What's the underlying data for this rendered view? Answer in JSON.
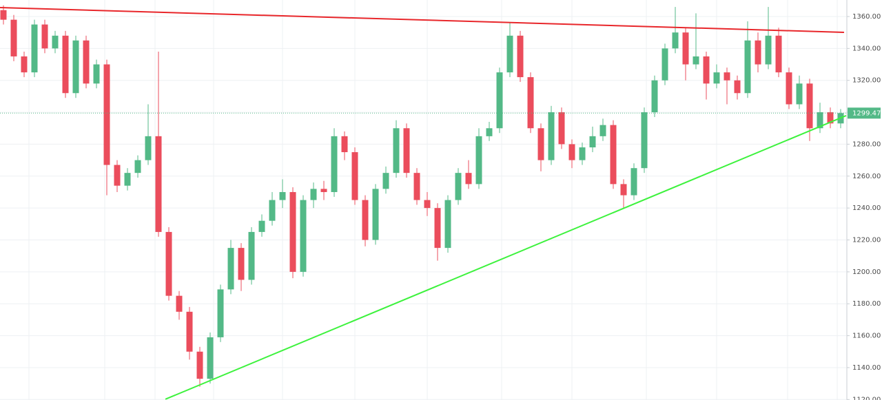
{
  "chart_data": {
    "type": "candlestick",
    "open": [
      1364,
      1358,
      1335,
      1325,
      1355,
      1340,
      1348,
      1312,
      1345,
      1318,
      1330,
      1267,
      1254,
      1262,
      1270,
      1285,
      1225,
      1185,
      1175,
      1150,
      1133,
      1159,
      1189,
      1215,
      1195,
      1225,
      1232,
      1245,
      1250,
      1200,
      1245,
      1252,
      1250,
      1285,
      1275,
      1245,
      1220,
      1252,
      1262,
      1290,
      1262,
      1245,
      1240,
      1215,
      1245,
      1262,
      1255,
      1285,
      1290,
      1325,
      1348,
      1322,
      1290,
      1270,
      1300,
      1280,
      1270,
      1278,
      1285,
      1292,
      1255,
      1248,
      1265,
      1300,
      1320,
      1340,
      1350,
      1330,
      1335,
      1318,
      1325,
      1320,
      1312,
      1345,
      1330,
      1348,
      1325,
      1305,
      1318,
      1290,
      1300,
      1293
    ],
    "high": [
      1367,
      1361,
      1338,
      1358,
      1358,
      1351,
      1351,
      1348,
      1348,
      1333,
      1333,
      1270,
      1265,
      1273,
      1305,
      1338,
      1228,
      1188,
      1178,
      1153,
      1162,
      1192,
      1220,
      1218,
      1228,
      1236,
      1250,
      1258,
      1253,
      1248,
      1256,
      1257,
      1290,
      1288,
      1278,
      1248,
      1255,
      1266,
      1295,
      1293,
      1265,
      1250,
      1243,
      1248,
      1265,
      1270,
      1290,
      1294,
      1328,
      1356,
      1351,
      1325,
      1293,
      1304,
      1303,
      1283,
      1281,
      1291,
      1296,
      1295,
      1258,
      1268,
      1303,
      1323,
      1343,
      1366,
      1353,
      1362,
      1338,
      1330,
      1328,
      1323,
      1357,
      1350,
      1366,
      1353,
      1328,
      1323,
      1321,
      1306,
      1303,
      1302
    ],
    "low": [
      1355,
      1332,
      1322,
      1322,
      1337,
      1337,
      1309,
      1309,
      1315,
      1315,
      1248,
      1250,
      1251,
      1259,
      1267,
      1222,
      1182,
      1170,
      1145,
      1128,
      1130,
      1156,
      1186,
      1188,
      1192,
      1222,
      1229,
      1240,
      1196,
      1197,
      1240,
      1245,
      1247,
      1270,
      1242,
      1216,
      1217,
      1249,
      1259,
      1259,
      1242,
      1235,
      1207,
      1212,
      1242,
      1252,
      1252,
      1282,
      1287,
      1322,
      1319,
      1287,
      1263,
      1267,
      1277,
      1265,
      1267,
      1275,
      1282,
      1252,
      1240,
      1245,
      1262,
      1297,
      1317,
      1337,
      1320,
      1327,
      1308,
      1315,
      1305,
      1308,
      1309,
      1325,
      1327,
      1322,
      1302,
      1302,
      1282,
      1287,
      1290,
      1290
    ],
    "close": [
      1358,
      1335,
      1325,
      1355,
      1340,
      1348,
      1312,
      1345,
      1318,
      1330,
      1267,
      1254,
      1262,
      1270,
      1285,
      1225,
      1185,
      1175,
      1150,
      1133,
      1159,
      1189,
      1215,
      1195,
      1225,
      1232,
      1245,
      1250,
      1200,
      1245,
      1252,
      1250,
      1285,
      1275,
      1245,
      1220,
      1252,
      1262,
      1290,
      1262,
      1245,
      1240,
      1215,
      1245,
      1262,
      1255,
      1285,
      1290,
      1325,
      1348,
      1322,
      1290,
      1270,
      1300,
      1280,
      1270,
      1278,
      1285,
      1292,
      1255,
      1248,
      1265,
      1300,
      1320,
      1340,
      1350,
      1330,
      1335,
      1318,
      1325,
      1320,
      1312,
      1345,
      1330,
      1348,
      1325,
      1305,
      1318,
      1290,
      1300,
      1293,
      1299.47
    ],
    "up_color": "#53b987",
    "down_color": "#eb4d5c",
    "trend_lines": [
      {
        "color": "#e8262a",
        "x": [
          -0.33,
          81.33
        ],
        "y": [
          1365.6,
          1350.1
        ]
      },
      {
        "color": "#3df23d",
        "x": [
          15.67,
          81.53
        ],
        "y": [
          1120.2,
          1297.9
        ]
      }
    ],
    "xlim": [
      -0.333,
      81.533
    ],
    "ylim": [
      1119.7,
      1370.35
    ],
    "yticks": [
      {
        "value": 1120,
        "label": "1120.00"
      },
      {
        "value": 1140,
        "label": "1140.00"
      },
      {
        "value": 1160,
        "label": "1160.00"
      },
      {
        "value": 1180,
        "label": "1180.00"
      },
      {
        "value": 1200,
        "label": "1200.00"
      },
      {
        "value": 1220,
        "label": "1220.00"
      },
      {
        "value": 1240,
        "label": "1240.00"
      },
      {
        "value": 1260,
        "label": "1260.00"
      },
      {
        "value": 1280,
        "label": "1280.00"
      },
      {
        "value": 1300,
        "label": "1300.00"
      },
      {
        "value": 1320,
        "label": "1320.00"
      },
      {
        "value": 1340,
        "label": "1340.00"
      },
      {
        "value": 1360,
        "label": "1360.00"
      }
    ],
    "grid": true,
    "price_line_color": "#53b987"
  }
}
